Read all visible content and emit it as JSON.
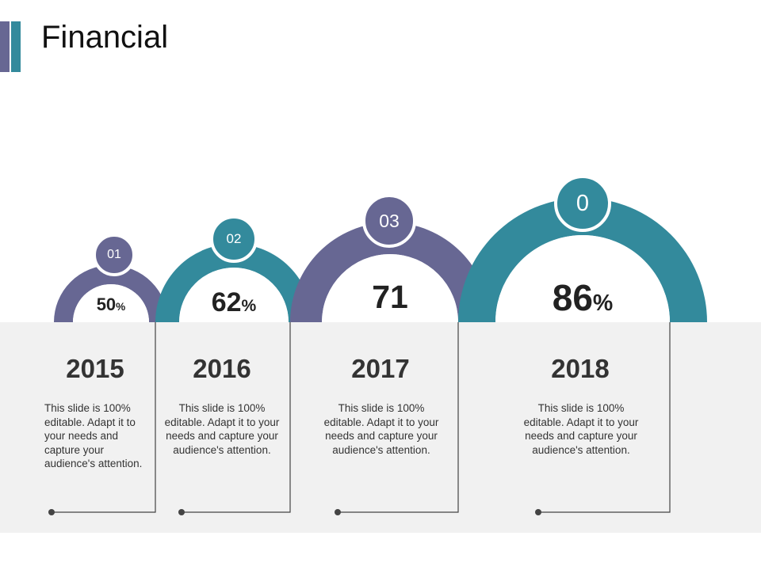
{
  "slide": {
    "title": "Financial"
  },
  "colors": {
    "purple": "#676793",
    "teal": "#338a9c",
    "panel": "#f1f1f1",
    "accent_left": "#676793",
    "accent_right": "#338a9c"
  },
  "items": [
    {
      "number": "01",
      "value": "50",
      "unit": "%",
      "year": "2015",
      "description": "This slide is 100% editable. Adapt it to your needs and capture your audience's attention.",
      "color": "#676793"
    },
    {
      "number": "02",
      "value": "62",
      "unit": "%",
      "year": "2016",
      "description": "This slide is 100% editable. Adapt it to your needs and capture your audience's attention.",
      "color": "#338a9c"
    },
    {
      "number": "03",
      "value": "71",
      "unit": "",
      "year": "2017",
      "description": "This slide is 100% editable. Adapt it to your needs and capture your audience's attention.",
      "color": "#676793"
    },
    {
      "number": "0",
      "value": "86",
      "unit": "%",
      "year": "2018",
      "description": "This slide is 100% editable. Adapt it to your needs and capture your audience's attention.",
      "color": "#338a9c"
    }
  ]
}
